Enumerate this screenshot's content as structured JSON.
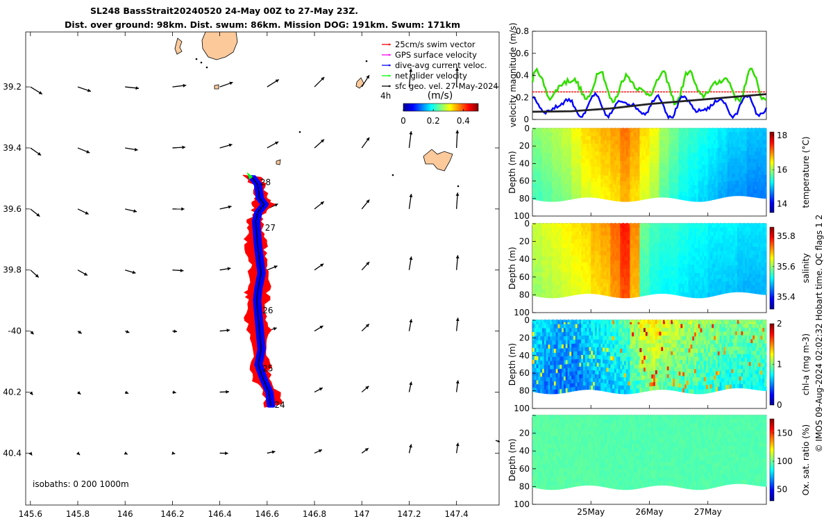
{
  "header": {
    "title_line1": "SL248 BassStrait20240520 24-May 00Z to 27-May 23Z.",
    "title_line2": "Dist. over ground: 98km. Dist. swum: 86km. Mission DOG: 191km. Swum: 171km"
  },
  "map": {
    "legend": {
      "items": [
        {
          "label": "25cm/s swim vector",
          "color": "#ff0000"
        },
        {
          "label": "GPS surface velocity",
          "color": "#ff00ff"
        },
        {
          "label": "dive-avg current veloc.",
          "color": "#0000ff"
        },
        {
          "label": "net glider velocity",
          "color": "#00ff00"
        },
        {
          "label": "sfc geo. vel. 27-May-2024",
          "color": "#000000"
        }
      ],
      "timestep_label": "4h",
      "colorbar_unit": "(m/s)",
      "colorbar_ticks": [
        "0",
        "0.2",
        "0.4"
      ],
      "colorbar_range": [
        0,
        0.5
      ]
    },
    "isobaths_label": "isobaths: 0   200  1000m",
    "day_markers": [
      "24",
      "25",
      "26",
      "27",
      "28"
    ],
    "colors": {
      "swim": "#ff0000",
      "current": "#0000ff",
      "track": "#000000",
      "glider": "#00ff00",
      "land": "#fcc99b"
    }
  },
  "chart_data": [
    {
      "type": "scatter",
      "name": "track map",
      "xlabel": "Longitude",
      "ylabel": "Latitude",
      "xlim": [
        145.58,
        147.58
      ],
      "ylim": [
        -40.57,
        -39.02
      ],
      "x_ticks": [
        145.6,
        145.8,
        146,
        146.2,
        146.4,
        146.6,
        146.8,
        147,
        147.2,
        147.4
      ],
      "x_tick_labels": [
        "145.6",
        "145.8",
        "146",
        "146.2",
        "146.4",
        "146.6",
        "146.8",
        "147",
        "147.2",
        "147.4"
      ],
      "y_ticks": [
        -39.2,
        -39.4,
        -39.6,
        -39.8,
        -40,
        -40.2,
        -40.4
      ],
      "y_tick_labels": [
        "39.2",
        "39.4",
        "39.6",
        "39.8",
        "-40",
        "40.2",
        "40.4"
      ],
      "track": [
        [
          146.615,
          -40.245
        ],
        [
          146.608,
          -40.2
        ],
        [
          146.585,
          -40.16
        ],
        [
          146.562,
          -40.11
        ],
        [
          146.575,
          -40.06
        ],
        [
          146.568,
          -40.0
        ],
        [
          146.562,
          -39.95
        ],
        [
          146.556,
          -39.9
        ],
        [
          146.562,
          -39.86
        ],
        [
          146.575,
          -39.81
        ],
        [
          146.568,
          -39.77
        ],
        [
          146.56,
          -39.72
        ],
        [
          146.556,
          -39.68
        ],
        [
          146.552,
          -39.64
        ],
        [
          146.562,
          -39.61
        ],
        [
          146.588,
          -39.585
        ],
        [
          146.568,
          -39.565
        ],
        [
          146.56,
          -39.52
        ],
        [
          146.535,
          -39.495
        ]
      ],
      "day_marker_positions": [
        [
          146.625,
          -40.24
        ],
        [
          146.575,
          -40.12
        ],
        [
          146.575,
          -39.93
        ],
        [
          146.585,
          -39.66
        ],
        [
          146.565,
          -39.51
        ]
      ],
      "current_arrows_lon": [
        145.6,
        145.8,
        146.0,
        146.2,
        146.4,
        146.6,
        146.8,
        147.0,
        147.2,
        147.4
      ],
      "current_arrows_lat": [
        -39.2,
        -39.4,
        -39.6,
        -39.8,
        -40.0,
        -40.2,
        -40.4
      ]
    },
    {
      "type": "line",
      "name": "velocity magnitude",
      "ylabel": "velocity magnitude (m/s)",
      "ylim": [
        0,
        0.8
      ],
      "y_ticks": [
        0,
        0.2,
        0.4,
        0.6,
        0.8
      ],
      "y_tick_labels": [
        "0",
        "0.2",
        "0.4",
        "0.6",
        "0.8"
      ],
      "x_range_days": [
        0,
        4
      ],
      "series": [
        {
          "name": "net glider velocity",
          "color": "#33dd00",
          "mean": 0.3,
          "amplitude": 0.1
        },
        {
          "name": "dive-avg current veloc.",
          "color": "#0000ff",
          "mean": 0.12,
          "amplitude": 0.07
        },
        {
          "name": "sfc geo. vel.",
          "color": "#222222",
          "values": [
            0.07,
            0.075,
            0.1,
            0.14,
            0.17,
            0.2,
            0.23
          ]
        },
        {
          "name": "25cm/s swim vector",
          "color": "#ff0000",
          "values": [
            0.25,
            0.25
          ]
        }
      ]
    },
    {
      "type": "heatmap",
      "name": "temperature section",
      "ylabel": "Depth (m)",
      "colorbar_label": "temperature (°C)",
      "clim": [
        13.5,
        18.2
      ],
      "colorbar_ticks": [
        14,
        16,
        18
      ],
      "y_ticks": [
        0,
        20,
        40,
        60,
        80,
        100
      ],
      "surface_values": [
        15.9,
        16.0,
        16.1,
        16.2,
        16.4,
        16.6,
        16.7,
        16.8,
        16.9,
        17.1,
        16.9,
        16.6,
        16.4,
        16.0,
        15.8,
        15.6,
        15.5,
        15.4,
        15.3,
        15.2,
        15.1,
        15.1,
        15.0,
        15.0
      ]
    },
    {
      "type": "heatmap",
      "name": "salinity section",
      "ylabel": "Depth (m)",
      "colorbar_label": "salinity",
      "clim": [
        35.32,
        35.86
      ],
      "colorbar_ticks": [
        35.4,
        35.6,
        35.8
      ],
      "y_ticks": [
        0,
        20,
        40,
        60,
        80,
        100
      ],
      "surface_values": [
        35.63,
        35.64,
        35.65,
        35.66,
        35.67,
        35.68,
        35.7,
        35.71,
        35.74,
        35.78,
        35.72,
        35.58,
        35.56,
        35.55,
        35.55,
        35.54,
        35.53,
        35.53,
        35.52,
        35.52,
        35.52,
        35.51,
        35.51,
        35.51
      ]
    },
    {
      "type": "heatmap",
      "name": "chlorophyll section",
      "ylabel": "Depth (m)",
      "colorbar_label": "chl-a (mg m-3)",
      "clim": [
        0,
        2
      ],
      "colorbar_ticks": [
        0,
        1,
        2
      ],
      "y_ticks": [
        0,
        20,
        40,
        60,
        80,
        100
      ],
      "surface_values": [
        0.7,
        0.65,
        0.6,
        0.6,
        0.6,
        0.7,
        0.75,
        0.8,
        0.85,
        0.9,
        1.1,
        1.25,
        1.3,
        1.2,
        1.15,
        1.1,
        1.1,
        1.05,
        1.05,
        1.0,
        1.0,
        1.0,
        1.0,
        1.0
      ]
    },
    {
      "type": "heatmap",
      "name": "oxygen saturation section",
      "ylabel": "Depth (m)",
      "colorbar_label": "Ox. sat. ratio (%)",
      "clim": [
        30,
        175
      ],
      "colorbar_ticks": [
        50,
        100,
        150
      ],
      "y_ticks": [
        20,
        40,
        60,
        80,
        100
      ],
      "surface_values": [
        97,
        97,
        97,
        97,
        97,
        97,
        97,
        96,
        96,
        96,
        96,
        96,
        96,
        96,
        96,
        96,
        96,
        96,
        96,
        96,
        96,
        96,
        96,
        96
      ],
      "x_ticks_days": [
        1,
        2,
        3
      ],
      "x_tick_labels": [
        "25May",
        "26May",
        "27May"
      ]
    }
  ],
  "footer": {
    "credit": "© IMOS 09-Aug-2024 02:02:32 Hobart time. QC flags 1  2"
  }
}
